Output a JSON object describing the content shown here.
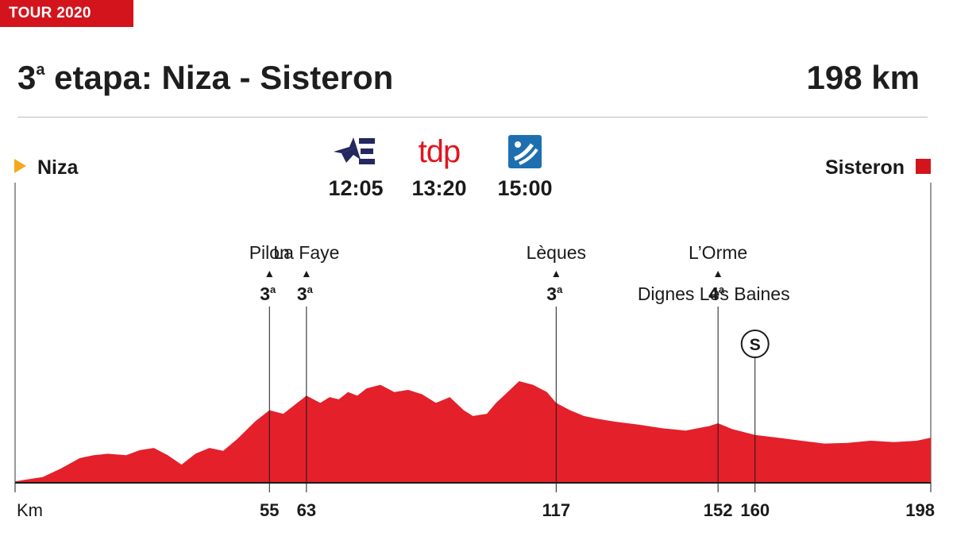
{
  "tag": "TOUR 2020",
  "header": {
    "title_prefix": "3",
    "title_sup": "a",
    "title_rest": " etapa: Niza - Sisteron",
    "distance": "198 km"
  },
  "start_label": "Niza",
  "finish_label": "Sisteron",
  "colors": {
    "accent": "#d3141c",
    "start_marker": "#f3a91d",
    "profile_fill": "#e4202b",
    "broadcaster_navy": "#24285f",
    "broadcaster_blue": "#1e6fb0"
  },
  "broadcasts": [
    {
      "logo": "eurosport-star-icon",
      "time": "12:05"
    },
    {
      "logo": "tdp-wordmark",
      "text": "tdp",
      "time": "13:20"
    },
    {
      "logo": "teledeporte-ball-icon",
      "time": "15:00"
    }
  ],
  "chart_data": {
    "type": "area",
    "x_axis_label": "Km",
    "xlim": [
      0,
      198
    ],
    "ticks": [
      55,
      63,
      117,
      152,
      160,
      198
    ],
    "profile_km": [
      0,
      3,
      6,
      10,
      14,
      17,
      20,
      24,
      27,
      30,
      33,
      36,
      39,
      42,
      45,
      48,
      52,
      55,
      58,
      61,
      63,
      66,
      68,
      70,
      72,
      74,
      76,
      79,
      82,
      85,
      88,
      91,
      94,
      97,
      99,
      102,
      104,
      106,
      109,
      112,
      115,
      117,
      120,
      123,
      126,
      130,
      135,
      140,
      145,
      150,
      152,
      155,
      160,
      165,
      170,
      175,
      180,
      185,
      190,
      195,
      198
    ],
    "profile_elev": [
      2,
      5,
      8,
      20,
      34,
      38,
      40,
      38,
      45,
      48,
      38,
      25,
      40,
      48,
      44,
      60,
      85,
      100,
      95,
      110,
      120,
      110,
      118,
      115,
      125,
      120,
      130,
      135,
      125,
      128,
      122,
      110,
      118,
      100,
      92,
      95,
      110,
      122,
      140,
      135,
      125,
      110,
      100,
      92,
      88,
      84,
      80,
      75,
      72,
      78,
      82,
      74,
      66,
      62,
      58,
      54,
      55,
      58,
      56,
      58,
      62
    ],
    "climbs": [
      {
        "name": "Pilon",
        "km": 55,
        "category": "3",
        "cat_sup": "a"
      },
      {
        "name": "La Faye",
        "km": 63,
        "category": "3",
        "cat_sup": "a"
      },
      {
        "name": "Lèques",
        "km": 117,
        "category": "3",
        "cat_sup": "a"
      },
      {
        "name": "L’Orme",
        "km": 152,
        "category": "4",
        "cat_sup": "a"
      }
    ],
    "sprint": {
      "name": "Dignes Les Baines",
      "km": 160,
      "symbol": "S"
    }
  }
}
